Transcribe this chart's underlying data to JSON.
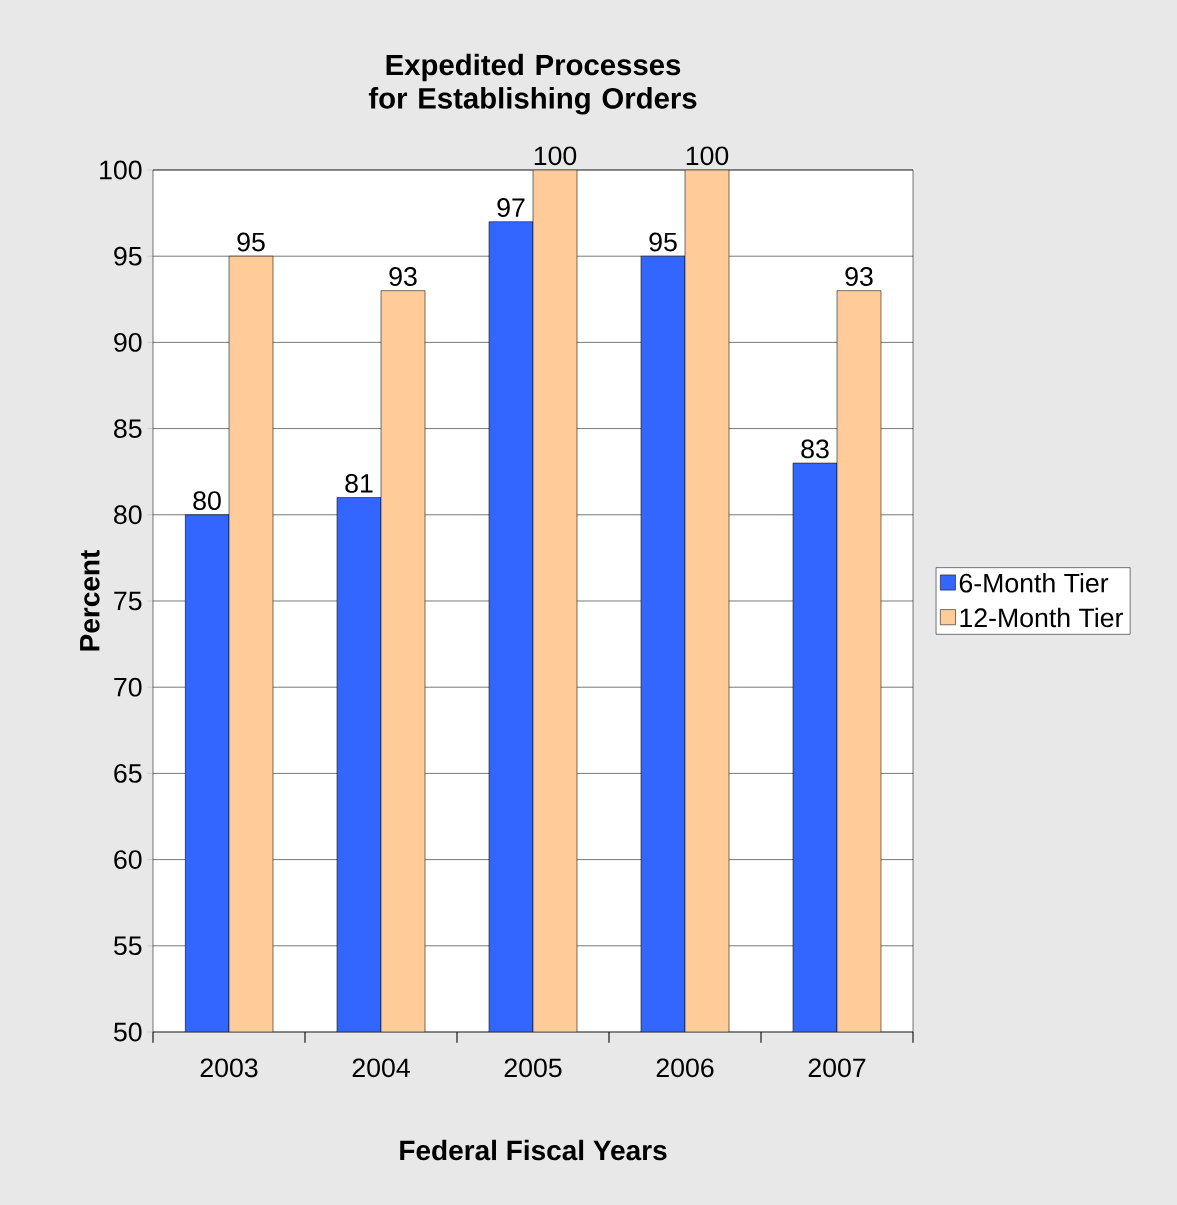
{
  "chart_data": {
    "type": "bar",
    "title": "Expedited Processes for Establishing Orders",
    "xlabel": "Federal Fiscal Years",
    "ylabel": "Percent",
    "categories": [
      "2003",
      "2004",
      "2005",
      "2006",
      "2007"
    ],
    "series": [
      {
        "name": "6-Month Tier",
        "color": "#3366ff",
        "values": [
          80,
          81,
          97,
          95,
          83
        ]
      },
      {
        "name": "12-Month Tier",
        "color": "#ffcc99",
        "values": [
          95,
          93,
          100,
          100,
          93
        ]
      }
    ],
    "ylim": [
      50,
      100
    ],
    "yticks": [
      50,
      55,
      60,
      65,
      70,
      75,
      80,
      85,
      90,
      95,
      100
    ],
    "grid": "y",
    "legend": "right",
    "data_labels": true
  }
}
